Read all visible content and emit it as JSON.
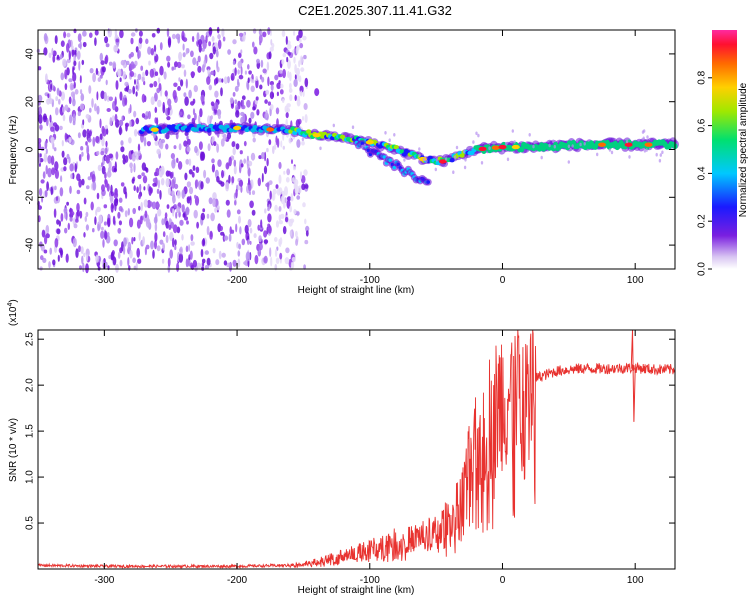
{
  "title": "C2E1.2025.307.11.41.G32",
  "chart_data": [
    {
      "type": "heatmap",
      "title": "C2E1.2025.307.11.41.G32",
      "xlabel": "Height of straight line (km)",
      "ylabel": "Frequency (Hz)",
      "xlim": [
        -350,
        130
      ],
      "ylim": [
        -50,
        50
      ],
      "x_ticks": [
        -300,
        -200,
        -100,
        0,
        100
      ],
      "y_ticks": [
        -40,
        -20,
        0,
        20,
        40
      ],
      "colorbar": {
        "label": "Normalized spectral amplitude",
        "range": [
          0,
          1
        ],
        "ticks": [
          0.0,
          0.2,
          0.4,
          0.6,
          0.8
        ]
      },
      "ridge": {
        "description": "dominant frequency track",
        "points": [
          [
            -270,
            8
          ],
          [
            -240,
            9
          ],
          [
            -200,
            9
          ],
          [
            -160,
            8
          ],
          [
            -140,
            6
          ],
          [
            -120,
            5
          ],
          [
            -100,
            3
          ],
          [
            -80,
            0
          ],
          [
            -60,
            -4
          ],
          [
            -45,
            -5
          ],
          [
            -30,
            -2
          ],
          [
            -20,
            0
          ],
          [
            0,
            1
          ],
          [
            20,
            1
          ],
          [
            60,
            2
          ],
          [
            100,
            2
          ],
          [
            130,
            2
          ]
        ]
      },
      "branch": {
        "description": "lower frequency branch",
        "points": [
          [
            -110,
            3
          ],
          [
            -90,
            -4
          ],
          [
            -70,
            -10
          ],
          [
            -55,
            -15
          ]
        ]
      },
      "noise_region": [
        -350,
        -155
      ]
    },
    {
      "type": "line",
      "xlabel": "Height of straight line (km)",
      "ylabel": "SNR (10 * v/v)",
      "y_multiplier": "(x10^4)",
      "y_multiplier_base": "(x10",
      "y_multiplier_exp": "4",
      "y_multiplier_close": ")",
      "xlim": [
        -350,
        130
      ],
      "ylim": [
        0,
        2.6
      ],
      "x_ticks": [
        -300,
        -200,
        -100,
        0,
        100
      ],
      "y_ticks": [
        0.5,
        1.0,
        1.5,
        2.0,
        2.5
      ],
      "y_tick_labels": [
        "0.5",
        "1.0",
        "1.5",
        "2.0",
        "2.5"
      ],
      "color": "#e8322f",
      "series": [
        {
          "name": "SNR envelope",
          "x": [
            -350,
            -300,
            -250,
            -200,
            -160,
            -140,
            -120,
            -100,
            -85,
            -70,
            -60,
            -50,
            -40,
            -30,
            -25,
            -20,
            -15,
            -10,
            -5,
            0,
            10,
            20,
            30,
            40,
            50,
            60,
            80,
            100,
            115,
            130
          ],
          "values": [
            0.04,
            0.03,
            0.03,
            0.03,
            0.04,
            0.08,
            0.15,
            0.22,
            0.3,
            0.32,
            0.38,
            0.4,
            0.55,
            0.8,
            1.1,
            1.3,
            1.5,
            1.65,
            1.75,
            1.85,
            1.95,
            2.05,
            2.1,
            2.15,
            2.17,
            2.18,
            2.18,
            2.19,
            2.17,
            2.17
          ]
        }
      ]
    }
  ]
}
